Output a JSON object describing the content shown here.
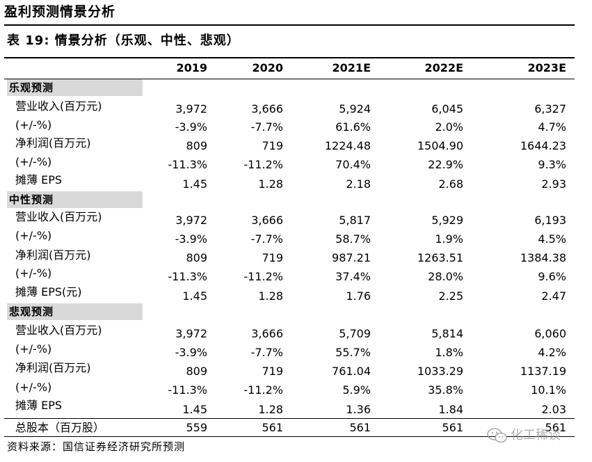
{
  "section_title": "盈利预测情景分析",
  "table_title": "表 19:  情景分析（乐观、中性、悲观）",
  "columns": [
    "2019",
    "2020",
    "2021E",
    "2022E",
    "2023E"
  ],
  "groups": [
    {
      "name": "乐观预测",
      "rows": [
        {
          "label": "营业收入(百万元)",
          "values": [
            "3,972",
            "3,666",
            "5,924",
            "6,045",
            "6,327"
          ]
        },
        {
          "label": "(+/-%)",
          "values": [
            "-3.9%",
            "-7.7%",
            "61.6%",
            "2.0%",
            "4.7%"
          ]
        },
        {
          "label": "净利润(百万元)",
          "values": [
            "809",
            "719",
            "1224.48",
            "1504.90",
            "1644.23"
          ]
        },
        {
          "label": "(+/-%)",
          "values": [
            "-11.3%",
            "-11.2%",
            "70.4%",
            "22.9%",
            "9.3%"
          ]
        },
        {
          "label": "摊薄 EPS",
          "values": [
            "1.45",
            "1.28",
            "2.18",
            "2.68",
            "2.93"
          ]
        }
      ]
    },
    {
      "name": "中性预测",
      "rows": [
        {
          "label": "营业收入(百万元)",
          "values": [
            "3,972",
            "3,666",
            "5,817",
            "5,929",
            "6,193"
          ]
        },
        {
          "label": "(+/-%)",
          "values": [
            "-3.9%",
            "-7.7%",
            "58.7%",
            "1.9%",
            "4.5%"
          ]
        },
        {
          "label": "净利润(百万元)",
          "values": [
            "809",
            "719",
            "987.21",
            "1263.51",
            "1384.38"
          ]
        },
        {
          "label": "(+/-%)",
          "values": [
            "-11.3%",
            "-11.2%",
            "37.4%",
            "28.0%",
            "9.6%"
          ]
        },
        {
          "label": "摊薄 EPS(元)",
          "values": [
            "1.45",
            "1.28",
            "1.76",
            "2.25",
            "2.47"
          ]
        }
      ]
    },
    {
      "name": "悲观预测",
      "rows": [
        {
          "label": "营业收入(百万元)",
          "values": [
            "3,972",
            "3,666",
            "5,709",
            "5,814",
            "6,060"
          ]
        },
        {
          "label": "(+/-%)",
          "values": [
            "-3.9%",
            "-7.7%",
            "55.7%",
            "1.8%",
            "4.2%"
          ]
        },
        {
          "label": "净利润(百万元)",
          "values": [
            "809",
            "719",
            "761.04",
            "1033.29",
            "1137.19"
          ]
        },
        {
          "label": "(+/-%)",
          "values": [
            "-11.3%",
            "-11.2%",
            "5.9%",
            "35.8%",
            "10.1%"
          ]
        },
        {
          "label": "摊薄 EPS",
          "values": [
            "1.45",
            "1.28",
            "1.36",
            "1.84",
            "2.03"
          ]
        }
      ]
    }
  ],
  "total_row": {
    "label": "总股本（百万股）",
    "values": [
      "559",
      "561",
      "561",
      "561",
      "561"
    ]
  },
  "source": "资料来源：国信证券经济研究所预测",
  "watermark": {
    "text": "化工稀谈",
    "icon": "wechat-icon"
  }
}
